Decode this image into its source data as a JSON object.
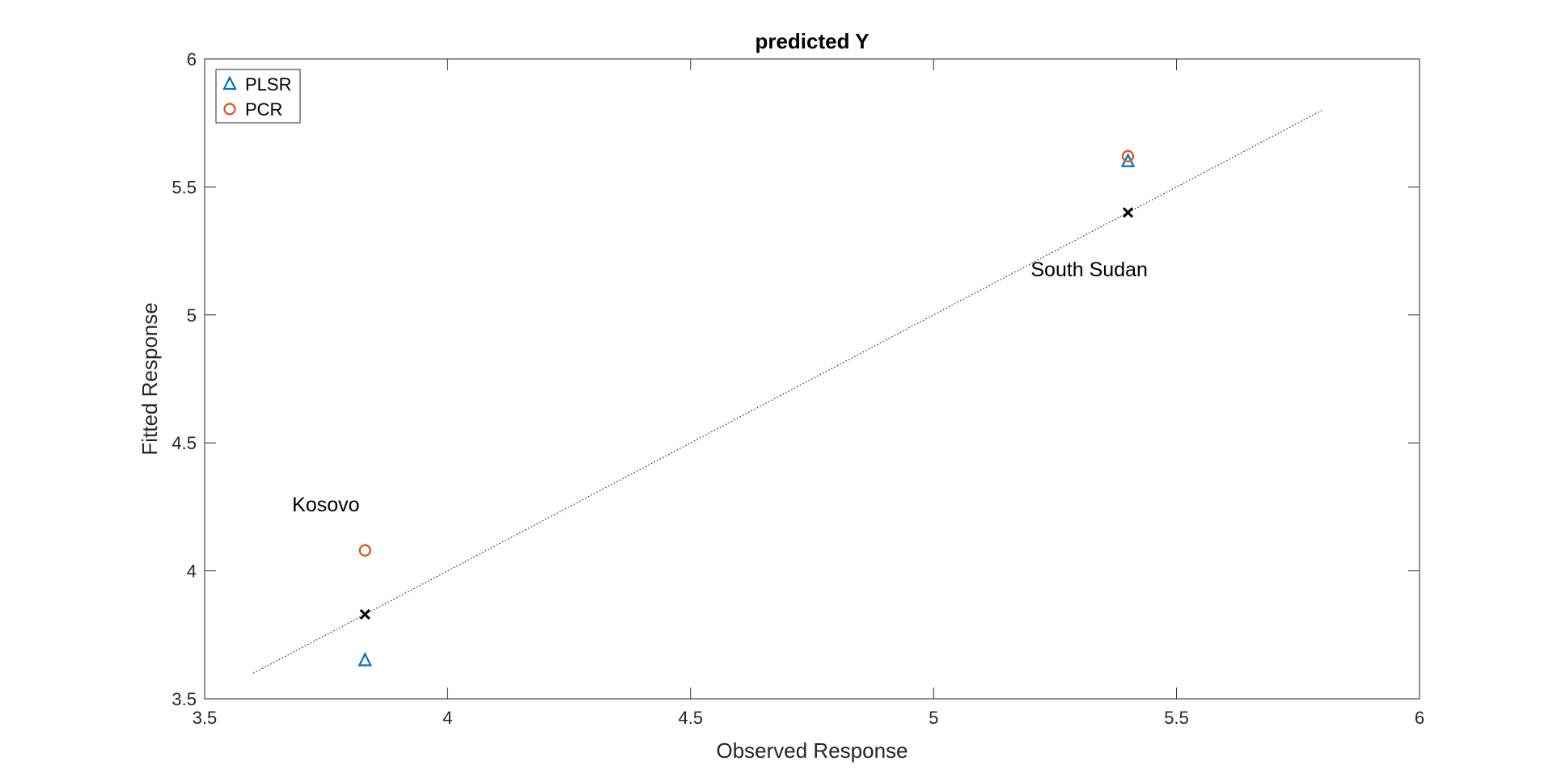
{
  "chart_data": {
    "type": "scatter",
    "title": "predicted Y",
    "xlabel": "Observed Response",
    "ylabel": "Fitted Response",
    "xlim": [
      3.5,
      6
    ],
    "ylim": [
      3.5,
      6
    ],
    "xticks": [
      3.5,
      4,
      4.5,
      5,
      5.5,
      6
    ],
    "xtick_labels": [
      "3.5",
      "4",
      "4.5",
      "5",
      "5.5",
      "6"
    ],
    "yticks": [
      3.5,
      4,
      4.5,
      5,
      5.5,
      6
    ],
    "ytick_labels": [
      "3.5",
      "4",
      "4.5",
      "5",
      "5.5",
      "6"
    ],
    "grid": false,
    "legend_position": "top-left",
    "series": [
      {
        "name": "PLSR",
        "marker": "triangle",
        "color": "#0072BD",
        "points": [
          {
            "x": 3.83,
            "y": 3.65
          },
          {
            "x": 5.4,
            "y": 5.6
          }
        ]
      },
      {
        "name": "PCR",
        "marker": "circle",
        "color": "#D95319",
        "points": [
          {
            "x": 3.83,
            "y": 4.08
          },
          {
            "x": 5.4,
            "y": 5.62
          }
        ]
      }
    ],
    "observed_markers": {
      "marker": "x",
      "color": "#000000",
      "points": [
        {
          "x": 3.83,
          "y": 3.83
        },
        {
          "x": 5.4,
          "y": 5.4
        }
      ]
    },
    "reference_line": {
      "style": "dotted",
      "color": "#000000",
      "from": {
        "x": 3.6,
        "y": 3.6
      },
      "to": {
        "x": 5.8,
        "y": 5.8
      }
    },
    "annotations": [
      {
        "text": "Kosovo",
        "x": 3.68,
        "y": 4.26
      },
      {
        "text": "South Sudan",
        "x": 5.2,
        "y": 5.18
      }
    ]
  }
}
